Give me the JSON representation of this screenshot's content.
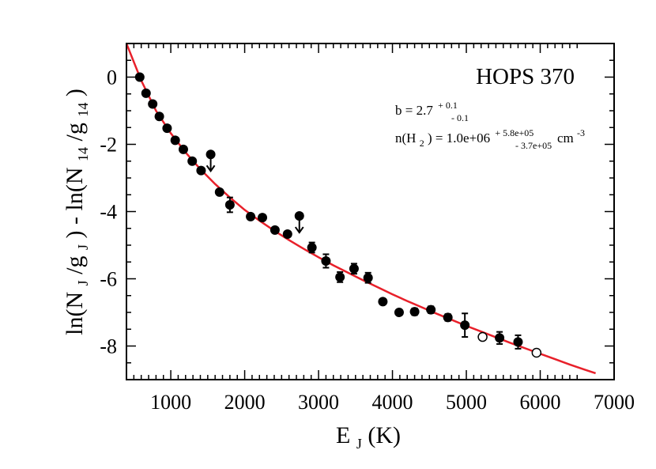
{
  "chart_data": {
    "type": "scatter",
    "title": "HOPS 370",
    "xlabel": {
      "main": "E",
      "sub": "J",
      "rest": " (K)"
    },
    "ylabel": {
      "p1": "ln(N",
      "s1": "J",
      "p2": "/g",
      "s2": "J",
      "p3": ") - ln(N",
      "s3": "14",
      "p4": "/g",
      "s4": "14",
      "p5": ")"
    },
    "xlim": [
      400,
      7000
    ],
    "ylim": [
      -9,
      1
    ],
    "xticks": [
      1000,
      2000,
      3000,
      4000,
      5000,
      6000,
      7000
    ],
    "yticks": [
      0,
      -2,
      -4,
      -6,
      -8
    ],
    "annotations": {
      "b_text": "b = 2.7",
      "b_plus": "+ 0.1",
      "b_minus": "- 0.1",
      "n_prefix": "n(H",
      "n_sub": "2",
      "n_mid": ") =  1.0e+06",
      "n_plus": "+ 5.8e+05",
      "n_minus": "- 3.7e+05",
      "n_unit": " cm",
      "n_exp": "-3"
    },
    "colors": {
      "model": "#e8202a",
      "points": "#000000"
    },
    "detections": [
      {
        "x": 580,
        "y": 0.0,
        "err": 0
      },
      {
        "x": 665,
        "y": -0.48,
        "err": 0
      },
      {
        "x": 755,
        "y": -0.8,
        "err": 0
      },
      {
        "x": 845,
        "y": -1.17,
        "err": 0
      },
      {
        "x": 950,
        "y": -1.52,
        "err": 0
      },
      {
        "x": 1060,
        "y": -1.88,
        "err": 0
      },
      {
        "x": 1170,
        "y": -2.15,
        "err": 0
      },
      {
        "x": 1290,
        "y": -2.5,
        "err": 0
      },
      {
        "x": 1410,
        "y": -2.78,
        "err": 0
      },
      {
        "x": 1660,
        "y": -3.42,
        "err": 0
      },
      {
        "x": 1800,
        "y": -3.8,
        "err": 0.22
      },
      {
        "x": 2080,
        "y": -4.15,
        "err": 0
      },
      {
        "x": 2240,
        "y": -4.18,
        "err": 0
      },
      {
        "x": 2410,
        "y": -4.55,
        "err": 0
      },
      {
        "x": 2580,
        "y": -4.67,
        "err": 0
      },
      {
        "x": 2910,
        "y": -5.07,
        "err": 0.15
      },
      {
        "x": 3100,
        "y": -5.47,
        "err": 0.2
      },
      {
        "x": 3290,
        "y": -5.95,
        "err": 0.15
      },
      {
        "x": 3480,
        "y": -5.7,
        "err": 0.15
      },
      {
        "x": 3670,
        "y": -5.97,
        "err": 0.15
      },
      {
        "x": 3870,
        "y": -6.68,
        "err": 0
      },
      {
        "x": 4090,
        "y": -7.0,
        "err": 0
      },
      {
        "x": 4300,
        "y": -6.98,
        "err": 0.1
      },
      {
        "x": 4520,
        "y": -6.92,
        "err": 0.1
      },
      {
        "x": 4750,
        "y": -7.15,
        "err": 0.1
      },
      {
        "x": 4980,
        "y": -7.38,
        "err": 0.35
      },
      {
        "x": 5450,
        "y": -7.76,
        "err": 0.18
      },
      {
        "x": 5700,
        "y": -7.88,
        "err": 0.2
      }
    ],
    "upper_limits": [
      {
        "x": 1540,
        "y": -2.3
      },
      {
        "x": 2740,
        "y": -4.13
      }
    ],
    "open_points": [
      {
        "x": 5220,
        "y": -7.73
      },
      {
        "x": 5950,
        "y": -8.2
      }
    ],
    "model_curve": {
      "x": [
        400,
        600,
        800,
        1000,
        1200,
        1400,
        1600,
        1800,
        2000,
        2200,
        2400,
        2600,
        2800,
        3000,
        3200,
        3400,
        3600,
        3800,
        4000,
        4200,
        4400,
        4600,
        4800,
        5000,
        5200,
        5400,
        5600,
        5800,
        6000,
        6200,
        6400,
        6600,
        6750
      ],
      "y": [
        1.0,
        -0.1,
        -1.0,
        -1.67,
        -2.24,
        -2.74,
        -3.18,
        -3.58,
        -3.95,
        -4.27,
        -4.57,
        -4.85,
        -5.11,
        -5.36,
        -5.6,
        -5.82,
        -6.04,
        -6.25,
        -6.46,
        -6.66,
        -6.85,
        -7.04,
        -7.22,
        -7.4,
        -7.57,
        -7.74,
        -7.91,
        -8.07,
        -8.23,
        -8.39,
        -8.55,
        -8.7,
        -8.81
      ]
    }
  }
}
